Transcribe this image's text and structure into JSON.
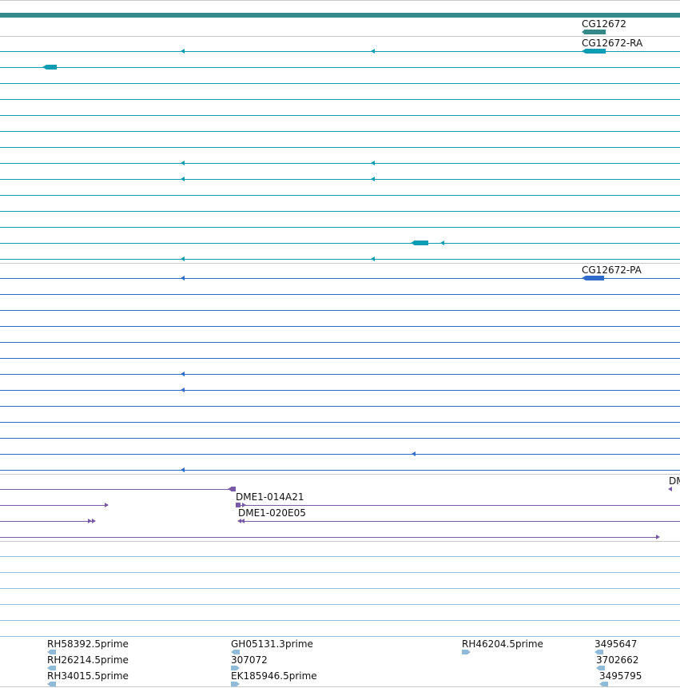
{
  "colors": {
    "gene": "#35898a",
    "transcript": "#0e9cb2",
    "protein": "#2f6bc9",
    "clone": "#7a5aa6",
    "est": "#8fbad8",
    "divider": "#c8c8c8",
    "text": "#111111"
  },
  "gene": {
    "name": "CG12672"
  },
  "transcripts": {
    "name": "CG12672-RA"
  },
  "proteins": {
    "name": "CG12672-PA"
  },
  "clones": {
    "items": [
      {
        "name": "DMI"
      },
      {
        "name": "DME1-014A21"
      },
      {
        "name": "DME1-020E05"
      }
    ]
  },
  "ests": {
    "items": [
      {
        "name": "RH58392.5prime",
        "strand": "-"
      },
      {
        "name": "RH26214.5prime",
        "strand": "-"
      },
      {
        "name": "RH34015.5prime",
        "strand": "-"
      },
      {
        "name": "GH05131.3prime",
        "strand": "-"
      },
      {
        "name": "307072",
        "strand": "+"
      },
      {
        "name": "EK185946.5prime",
        "strand": "+"
      },
      {
        "name": "RH46204.5prime",
        "strand": "+"
      },
      {
        "name": "3495647",
        "strand": "-"
      },
      {
        "name": "3702662",
        "strand": "-"
      },
      {
        "name": "3495795",
        "strand": "-"
      }
    ]
  }
}
